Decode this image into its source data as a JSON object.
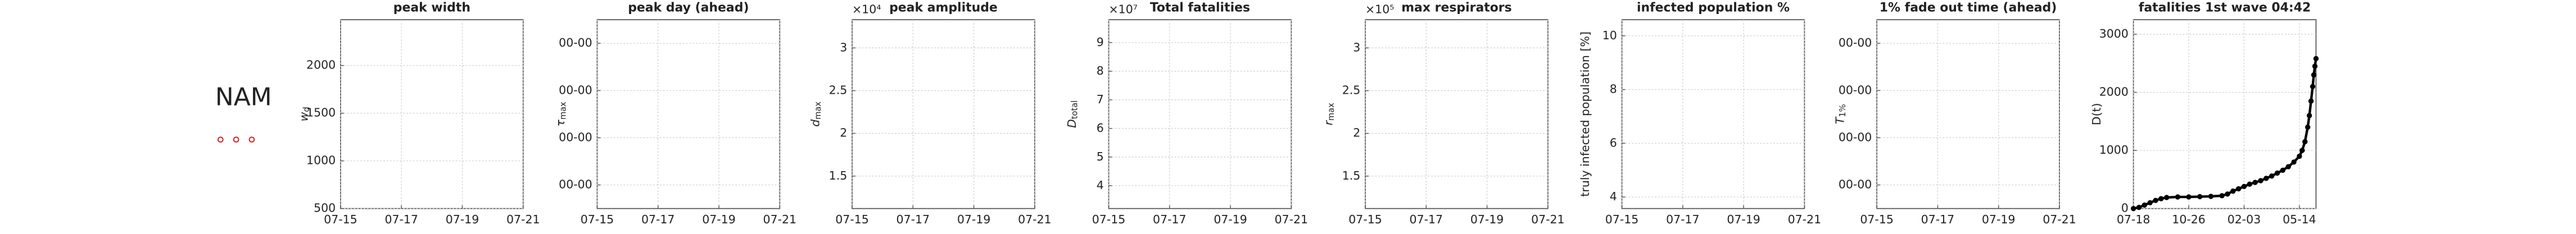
{
  "region": "NAM",
  "chart_data": [
    {
      "type": "line",
      "title": "peak width",
      "ylabel": "w_d",
      "xlim": [
        "07-15",
        "07-21"
      ],
      "xticks": [
        "07-15",
        "07-17",
        "07-19",
        "07-21"
      ],
      "ylim": [
        500,
        2480
      ],
      "yticks": [
        500,
        1000,
        1500,
        2000
      ],
      "grid": true,
      "x": [],
      "values": []
    },
    {
      "type": "line",
      "title": "peak day (ahead)",
      "ylabel": "τ_max",
      "xlim": [
        "07-15",
        "07-21"
      ],
      "xticks": [
        "07-15",
        "07-17",
        "07-19",
        "07-21"
      ],
      "ylim": [
        0,
        4
      ],
      "yticks": [
        {
          "value": 0.5,
          "label": "00-00"
        },
        {
          "value": 1.5,
          "label": "00-00"
        },
        {
          "value": 2.5,
          "label": "00-00"
        },
        {
          "value": 3.5,
          "label": "00-00"
        }
      ],
      "grid": true,
      "x": [],
      "values": []
    },
    {
      "type": "line",
      "title": "peak amplitude",
      "ylabel": "d_max",
      "y_multiplier": "×10⁴",
      "xlim": [
        "07-15",
        "07-21"
      ],
      "xticks": [
        "07-15",
        "07-17",
        "07-19",
        "07-21"
      ],
      "ylim": [
        1.12,
        3.33
      ],
      "yticks": [
        1.5,
        2,
        2.5,
        3
      ],
      "grid": true,
      "x": [],
      "values": []
    },
    {
      "type": "line",
      "title": "Total fatalities",
      "ylabel": "D_total",
      "y_multiplier": "×10⁷",
      "xlim": [
        "07-15",
        "07-21"
      ],
      "xticks": [
        "07-15",
        "07-17",
        "07-19",
        "07-21"
      ],
      "ylim": [
        3.2,
        9.8
      ],
      "yticks": [
        4,
        5,
        6,
        7,
        8,
        9
      ],
      "grid": true,
      "x": [],
      "values": []
    },
    {
      "type": "line",
      "title": "max respirators",
      "ylabel": "r_max",
      "y_multiplier": "×10⁵",
      "xlim": [
        "07-15",
        "07-21"
      ],
      "xticks": [
        "07-15",
        "07-17",
        "07-19",
        "07-21"
      ],
      "ylim": [
        1.12,
        3.33
      ],
      "yticks": [
        1.5,
        2,
        2.5,
        3
      ],
      "grid": true,
      "x": [],
      "values": []
    },
    {
      "type": "line",
      "title": "infected population %",
      "ylabel": "truly infected population [%]",
      "xlim": [
        "07-15",
        "07-21"
      ],
      "xticks": [
        "07-15",
        "07-17",
        "07-19",
        "07-21"
      ],
      "ylim": [
        3.57,
        10.6
      ],
      "yticks": [
        4,
        6,
        8,
        10
      ],
      "grid": true,
      "x": [],
      "values": []
    },
    {
      "type": "line",
      "title": "1% fade out time (ahead)",
      "ylabel": "T_1%",
      "xlim": [
        "07-15",
        "07-21"
      ],
      "xticks": [
        "07-15",
        "07-17",
        "07-19",
        "07-21"
      ],
      "ylim": [
        0,
        4
      ],
      "yticks": [
        {
          "value": 0.5,
          "label": "00-00"
        },
        {
          "value": 1.5,
          "label": "00-00"
        },
        {
          "value": 2.5,
          "label": "00-00"
        },
        {
          "value": 3.5,
          "label": "00-00"
        }
      ],
      "grid": true,
      "x": [],
      "values": []
    },
    {
      "type": "line",
      "title": "fatalities 1st wave 04:42",
      "ylabel": "D(t)",
      "color": "#000000",
      "xlim": [
        0,
        330
      ],
      "xticks": [
        {
          "value": 0,
          "label": "07-18"
        },
        {
          "value": 100,
          "label": "10-26"
        },
        {
          "value": 200,
          "label": "02-03"
        },
        {
          "value": 300,
          "label": "05-14"
        }
      ],
      "ylim": [
        0,
        3250
      ],
      "yticks": [
        0,
        1000,
        2000,
        3000
      ],
      "grid": true,
      "x": [
        0,
        10,
        20,
        30,
        40,
        50,
        60,
        80,
        100,
        120,
        140,
        160,
        170,
        180,
        190,
        200,
        210,
        220,
        230,
        240,
        250,
        260,
        270,
        280,
        290,
        300,
        305,
        310,
        315,
        318,
        321,
        324,
        326,
        328,
        330
      ],
      "values": [
        0,
        20,
        60,
        100,
        140,
        170,
        190,
        200,
        200,
        205,
        210,
        220,
        250,
        300,
        340,
        380,
        420,
        450,
        480,
        520,
        560,
        610,
        660,
        720,
        800,
        900,
        1000,
        1150,
        1400,
        1600,
        1850,
        2100,
        2300,
        2450,
        2580
      ]
    }
  ]
}
